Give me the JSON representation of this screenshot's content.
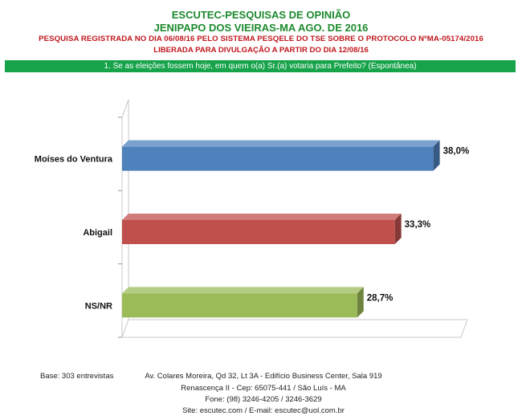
{
  "header": {
    "title": "ESCUTEC-PESQUISAS DE OPINIÃO",
    "subtitle": "JENIPAPO DOS VIEIRAS-MA AGO. DE 2016",
    "registration": "PESQUISA REGISTRADA NO DIA 06/08/16 PELO SISTEMA PESQELE DO TSE SOBRE O PROTOCOLO NºMA-05174/2016",
    "release": "LIBERADA PARA DIVULGAÇÃO A PARTIR DO DIA 12/08/16"
  },
  "question": "1. Se as eleições fossem hoje, em quem o(a) Sr.(a) votaria para Prefeito? (Espontânea)",
  "chart_data": {
    "type": "bar",
    "orientation": "horizontal",
    "style": "3d",
    "categories": [
      "Moíses do Ventura",
      "Abigail",
      "NS/NR"
    ],
    "values": [
      38.0,
      33.3,
      28.7
    ],
    "value_labels": [
      "38,0%",
      "33,3%",
      "28,7%"
    ],
    "colors": [
      "#4f81bd",
      "#c0504d",
      "#9bbb59"
    ],
    "xlim": [
      0,
      40
    ],
    "grid": false,
    "legend": "none"
  },
  "footer": {
    "base": "Base: 303 entrevistas",
    "address_1": "Av. Colares Moreira, Qd 32, Lt 3A - Edifício Business Center, Sala 919",
    "address_2": "Renascença II - Cep: 65075-441 / São Luís - MA",
    "phone": "Fone: (98) 3246-4205 / 3246-3629",
    "site": "Site: escutec.com / E-mail: escutec@uol.com.br"
  }
}
